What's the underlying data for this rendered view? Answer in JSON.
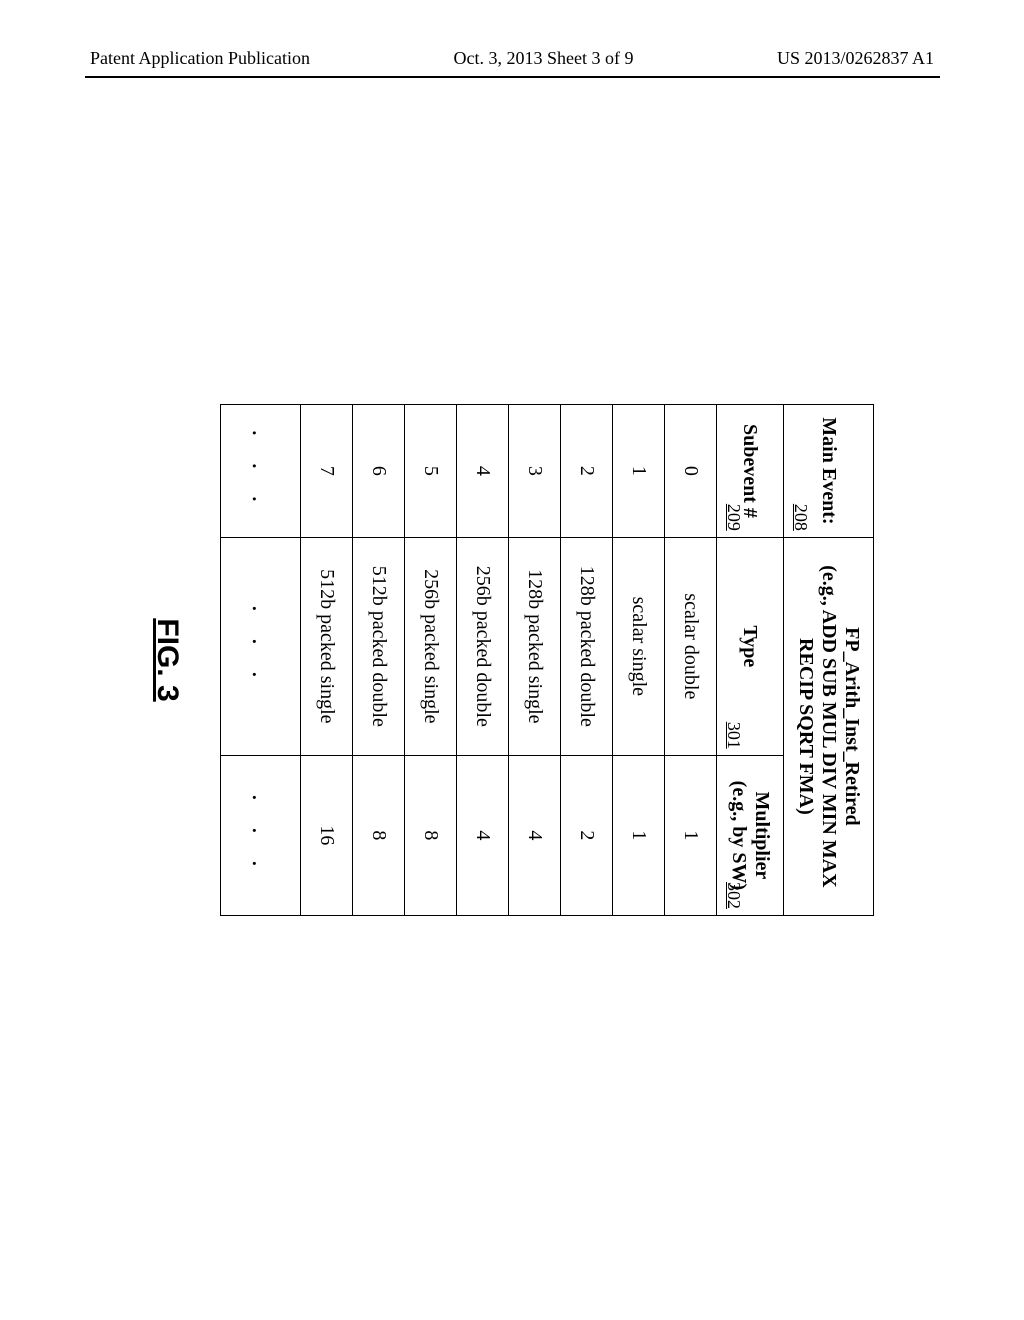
{
  "header": {
    "left": "Patent Application Publication",
    "center": "Oct. 3, 2013  Sheet 3 of 9",
    "right": "US 2013/0262837 A1"
  },
  "figure": {
    "label": "FIG. 3",
    "main_event_label": "Main Event:",
    "main_event_ref": "208",
    "main_event_value_line1": "FP_Arith_Inst_Retired",
    "main_event_value_line2": "(e.g., ADD  SUB  MUL  DIV  MIN  MAX  RECIP  SQRT  FMA)",
    "subevent_label": "Subevent #",
    "subevent_ref": "209",
    "type_label": "Type",
    "type_ref": "301",
    "multiplier_label_line1": "Multiplier",
    "multiplier_label_line2": "(e.g., by SW)",
    "multiplier_ref": "302",
    "rows": [
      {
        "sub": "0",
        "type": "scalar double",
        "mult": "1"
      },
      {
        "sub": "1",
        "type": "scalar single",
        "mult": "1"
      },
      {
        "sub": "2",
        "type": "128b packed double",
        "mult": "2"
      },
      {
        "sub": "3",
        "type": "128b packed single",
        "mult": "4"
      },
      {
        "sub": "4",
        "type": "256b packed double",
        "mult": "4"
      },
      {
        "sub": "5",
        "type": "256b packed single",
        "mult": "8"
      },
      {
        "sub": "6",
        "type": "512b packed double",
        "mult": "8"
      },
      {
        "sub": "7",
        "type": "512b packed single",
        "mult": "16"
      }
    ],
    "ellipsis": ". . ."
  }
}
